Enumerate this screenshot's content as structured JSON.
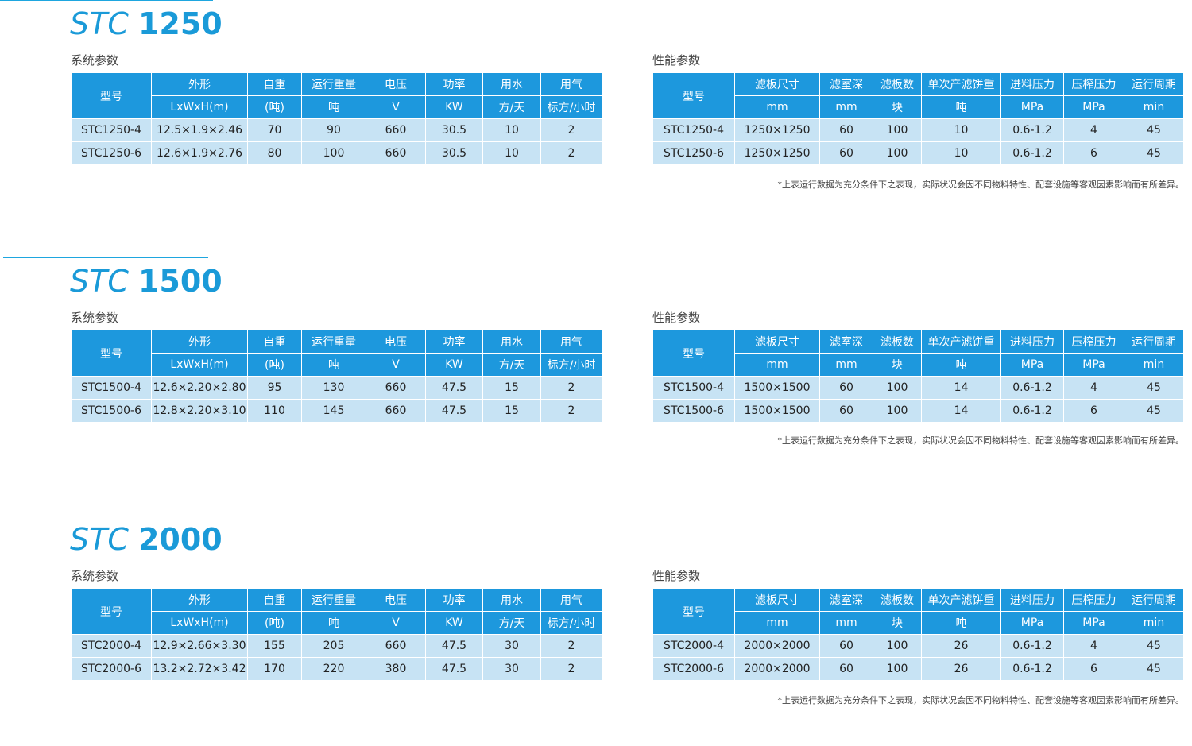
{
  "sections": [
    {
      "title_prefix": "STC",
      "title_number": "1250",
      "system_caption": "系统参数",
      "performance_caption": "性能参数",
      "system_rows": [
        [
          "STC1250-4",
          "12.5×1.9×2.46",
          "70",
          "90",
          "660",
          "30.5",
          "10",
          "2"
        ],
        [
          "STC1250-6",
          "12.6×1.9×2.76",
          "80",
          "100",
          "660",
          "30.5",
          "10",
          "2"
        ]
      ],
      "performance_rows": [
        [
          "STC1250-4",
          "1250×1250",
          "60",
          "100",
          "10",
          "0.6-1.2",
          "4",
          "45"
        ],
        [
          "STC1250-6",
          "1250×1250",
          "60",
          "100",
          "10",
          "0.6-1.2",
          "6",
          "45"
        ]
      ]
    },
    {
      "title_prefix": "STC",
      "title_number": "1500",
      "system_caption": "系统参数",
      "performance_caption": "性能参数",
      "system_rows": [
        [
          "STC1500-4",
          "12.6×2.20×2.80",
          "95",
          "130",
          "660",
          "47.5",
          "15",
          "2"
        ],
        [
          "STC1500-6",
          "12.8×2.20×3.10",
          "110",
          "145",
          "660",
          "47.5",
          "15",
          "2"
        ]
      ],
      "performance_rows": [
        [
          "STC1500-4",
          "1500×1500",
          "60",
          "100",
          "14",
          "0.6-1.2",
          "4",
          "45"
        ],
        [
          "STC1500-6",
          "1500×1500",
          "60",
          "100",
          "14",
          "0.6-1.2",
          "6",
          "45"
        ]
      ]
    },
    {
      "title_prefix": "STC",
      "title_number": "2000",
      "system_caption": "系统参数",
      "performance_caption": "性能参数",
      "system_rows": [
        [
          "STC2000-4",
          "12.9×2.66×3.30",
          "155",
          "205",
          "660",
          "47.5",
          "30",
          "2"
        ],
        [
          "STC2000-6",
          "13.2×2.72×3.42",
          "170",
          "220",
          "380",
          "47.5",
          "30",
          "2"
        ]
      ],
      "performance_rows": [
        [
          "STC2000-4",
          "2000×2000",
          "60",
          "100",
          "26",
          "0.6-1.2",
          "4",
          "45"
        ],
        [
          "STC2000-6",
          "2000×2000",
          "60",
          "100",
          "26",
          "0.6-1.2",
          "6",
          "45"
        ]
      ]
    }
  ],
  "system_headers": {
    "model": "型号",
    "names": [
      "外形",
      "自重",
      "运行重量",
      "电压",
      "功率",
      "用水",
      "用气"
    ],
    "units": [
      "LxWxH(m)",
      "(吨)",
      "吨",
      "V",
      "KW",
      "方/天",
      "标方/小时"
    ]
  },
  "performance_headers": {
    "model": "型号",
    "names": [
      "滤板尺寸",
      "滤室深",
      "滤板数",
      "单次产滤饼重",
      "进料压力",
      "压榨压力",
      "运行周期"
    ],
    "units": [
      "mm",
      "mm",
      "块",
      "吨",
      "MPa",
      "MPa",
      "min"
    ]
  },
  "footnote": "*上表运行数据为充分条件下之表现，实际状况会因不同物料特性、配套设施等客观因素影响而有所差异。",
  "colors": {
    "accent": "#1a9ad8",
    "header_bg": "#1d98dd",
    "row_bg": "#c7e3f4"
  }
}
